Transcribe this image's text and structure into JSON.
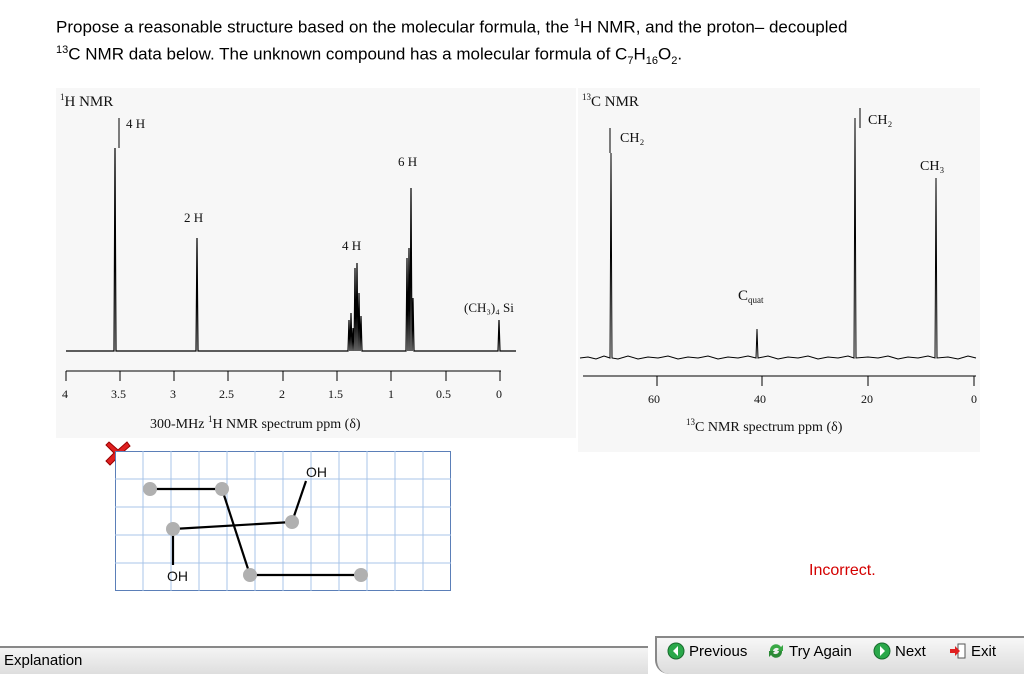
{
  "question": {
    "line1_a": "Propose a reasonable structure based on the molecular formula, the ",
    "line1_sup": "1",
    "line1_b": "H NMR, and the proton– decoupled",
    "line2_sup": "13",
    "line2_a": "C NMR data below. The unknown compound has a molecular formula of C",
    "line2_sub1": "7",
    "line2_h": "H",
    "line2_sub2": "16",
    "line2_o": "O",
    "line2_sub3": "2",
    "line2_end": "."
  },
  "h_nmr": {
    "title_sup": "1",
    "title": "H NMR",
    "peak_labels": [
      "4 H",
      "2 H",
      "4 H",
      "6 H"
    ],
    "tms_label": "(CH₃)₄ Si",
    "ticks": [
      "4",
      "3.5",
      "3",
      "2.5",
      "2",
      "1.5",
      "1",
      "0.5",
      "0"
    ],
    "axis_label_a": "300-MHz ",
    "axis_label_sup": "1",
    "axis_label_b": "H NMR spectrum ppm (δ)"
  },
  "c_nmr": {
    "title_sup": "13",
    "title": "C NMR",
    "peak_labels": [
      "CH₂",
      "C",
      "CH₂",
      "CH₃"
    ],
    "quat_sub": "quat",
    "ticks": [
      "60",
      "40",
      "20",
      "0"
    ],
    "axis_label_sup": "13",
    "axis_label_b": "C NMR spectrum ppm (δ)"
  },
  "drawing": {
    "label_top": "OH",
    "label_bottom": "OH",
    "status_icon": "red-x-icon"
  },
  "feedback": "Incorrect.",
  "footer": {
    "explanation": "Explanation",
    "previous": "Previous",
    "try_again": "Try Again",
    "next": "Next",
    "exit": "Exit"
  },
  "colors": {
    "feedback": "#d40000",
    "grid": "#a8c4e8",
    "atom": "#b0b0b0"
  }
}
